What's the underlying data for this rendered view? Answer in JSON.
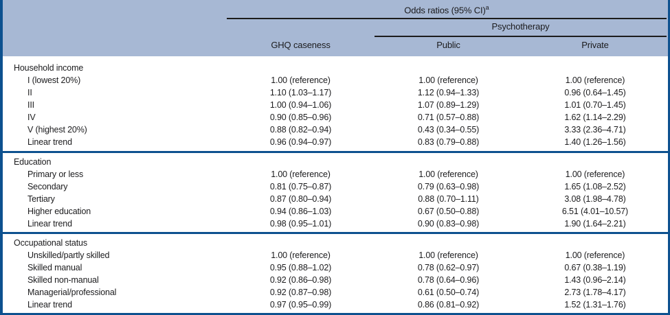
{
  "table": {
    "title": "Odds ratios (95% CI)",
    "title_superscript": "a",
    "group_header": "Psychotherapy",
    "columns": [
      "GHQ caseness",
      "Public",
      "Private"
    ],
    "colors": {
      "frame_border": "#0d518f",
      "header_background": "#a7b8d4",
      "rule": "#1c1c1c"
    },
    "sections": [
      {
        "label": "Household income",
        "rows": [
          {
            "label": "I (lowest 20%)",
            "values": [
              "1.00 (reference)",
              "1.00 (reference)",
              "1.00 (reference)"
            ]
          },
          {
            "label": "II",
            "values": [
              "1.10 (1.03–1.17)",
              "1.12 (0.94–1.33)",
              "0.96 (0.64–1.45)"
            ]
          },
          {
            "label": "III",
            "values": [
              "1.00 (0.94–1.06)",
              "1.07 (0.89–1.29)",
              "1.01 (0.70–1.45)"
            ]
          },
          {
            "label": "IV",
            "values": [
              "0.90 (0.85–0.96)",
              "0.71 (0.57–0.88)",
              "1.62 (1.14–2.29)"
            ]
          },
          {
            "label": "V (highest 20%)",
            "values": [
              "0.88 (0.82–0.94)",
              "0.43 (0.34–0.55)",
              "3.33 (2.36–4.71)"
            ]
          },
          {
            "label": "Linear trend",
            "values": [
              "0.96 (0.94–0.97)",
              "0.83 (0.79–0.88)",
              "1.40 (1.26–1.56)"
            ]
          }
        ]
      },
      {
        "label": "Education",
        "rows": [
          {
            "label": "Primary or less",
            "values": [
              "1.00 (reference)",
              "1.00 (reference)",
              "1.00 (reference)"
            ]
          },
          {
            "label": "Secondary",
            "values": [
              "0.81 (0.75–0.87)",
              "0.79 (0.63–0.98)",
              "1.65 (1.08–2.52)"
            ]
          },
          {
            "label": "Tertiary",
            "values": [
              "0.87 (0.80–0.94)",
              "0.88 (0.70–1.11)",
              "3.08 (1.98–4.78)"
            ]
          },
          {
            "label": "Higher education",
            "values": [
              "0.94 (0.86–1.03)",
              "0.67 (0.50–0.88)",
              "6.51 (4.01–10.57)"
            ]
          },
          {
            "label": "Linear trend",
            "values": [
              "0.98 (0.95–1.01)",
              "0.90 (0.83–0.98)",
              "1.90 (1.64–2.21)"
            ]
          }
        ]
      },
      {
        "label": "Occupational status",
        "rows": [
          {
            "label": "Unskilled/partly skilled",
            "values": [
              "1.00 (reference)",
              "1.00 (reference)",
              "1.00 (reference)"
            ]
          },
          {
            "label": "Skilled manual",
            "values": [
              "0.95 (0.88–1.02)",
              "0.78 (0.62–0.97)",
              "0.67 (0.38–1.19)"
            ]
          },
          {
            "label": "Skilled non-manual",
            "values": [
              "0.92 (0.86–0.98)",
              "0.78 (0.64–0.96)",
              "1.43 (0.96–2.14)"
            ]
          },
          {
            "label": "Managerial/professional",
            "values": [
              "0.92 (0.87–0.98)",
              "0.61 (0.50–0.74)",
              "2.73 (1.78–4.17)"
            ]
          },
          {
            "label": "Linear trend",
            "values": [
              "0.97 (0.95–0.99)",
              "0.86 (0.81–0.92)",
              "1.52 (1.31–1.76)"
            ]
          }
        ]
      }
    ]
  }
}
